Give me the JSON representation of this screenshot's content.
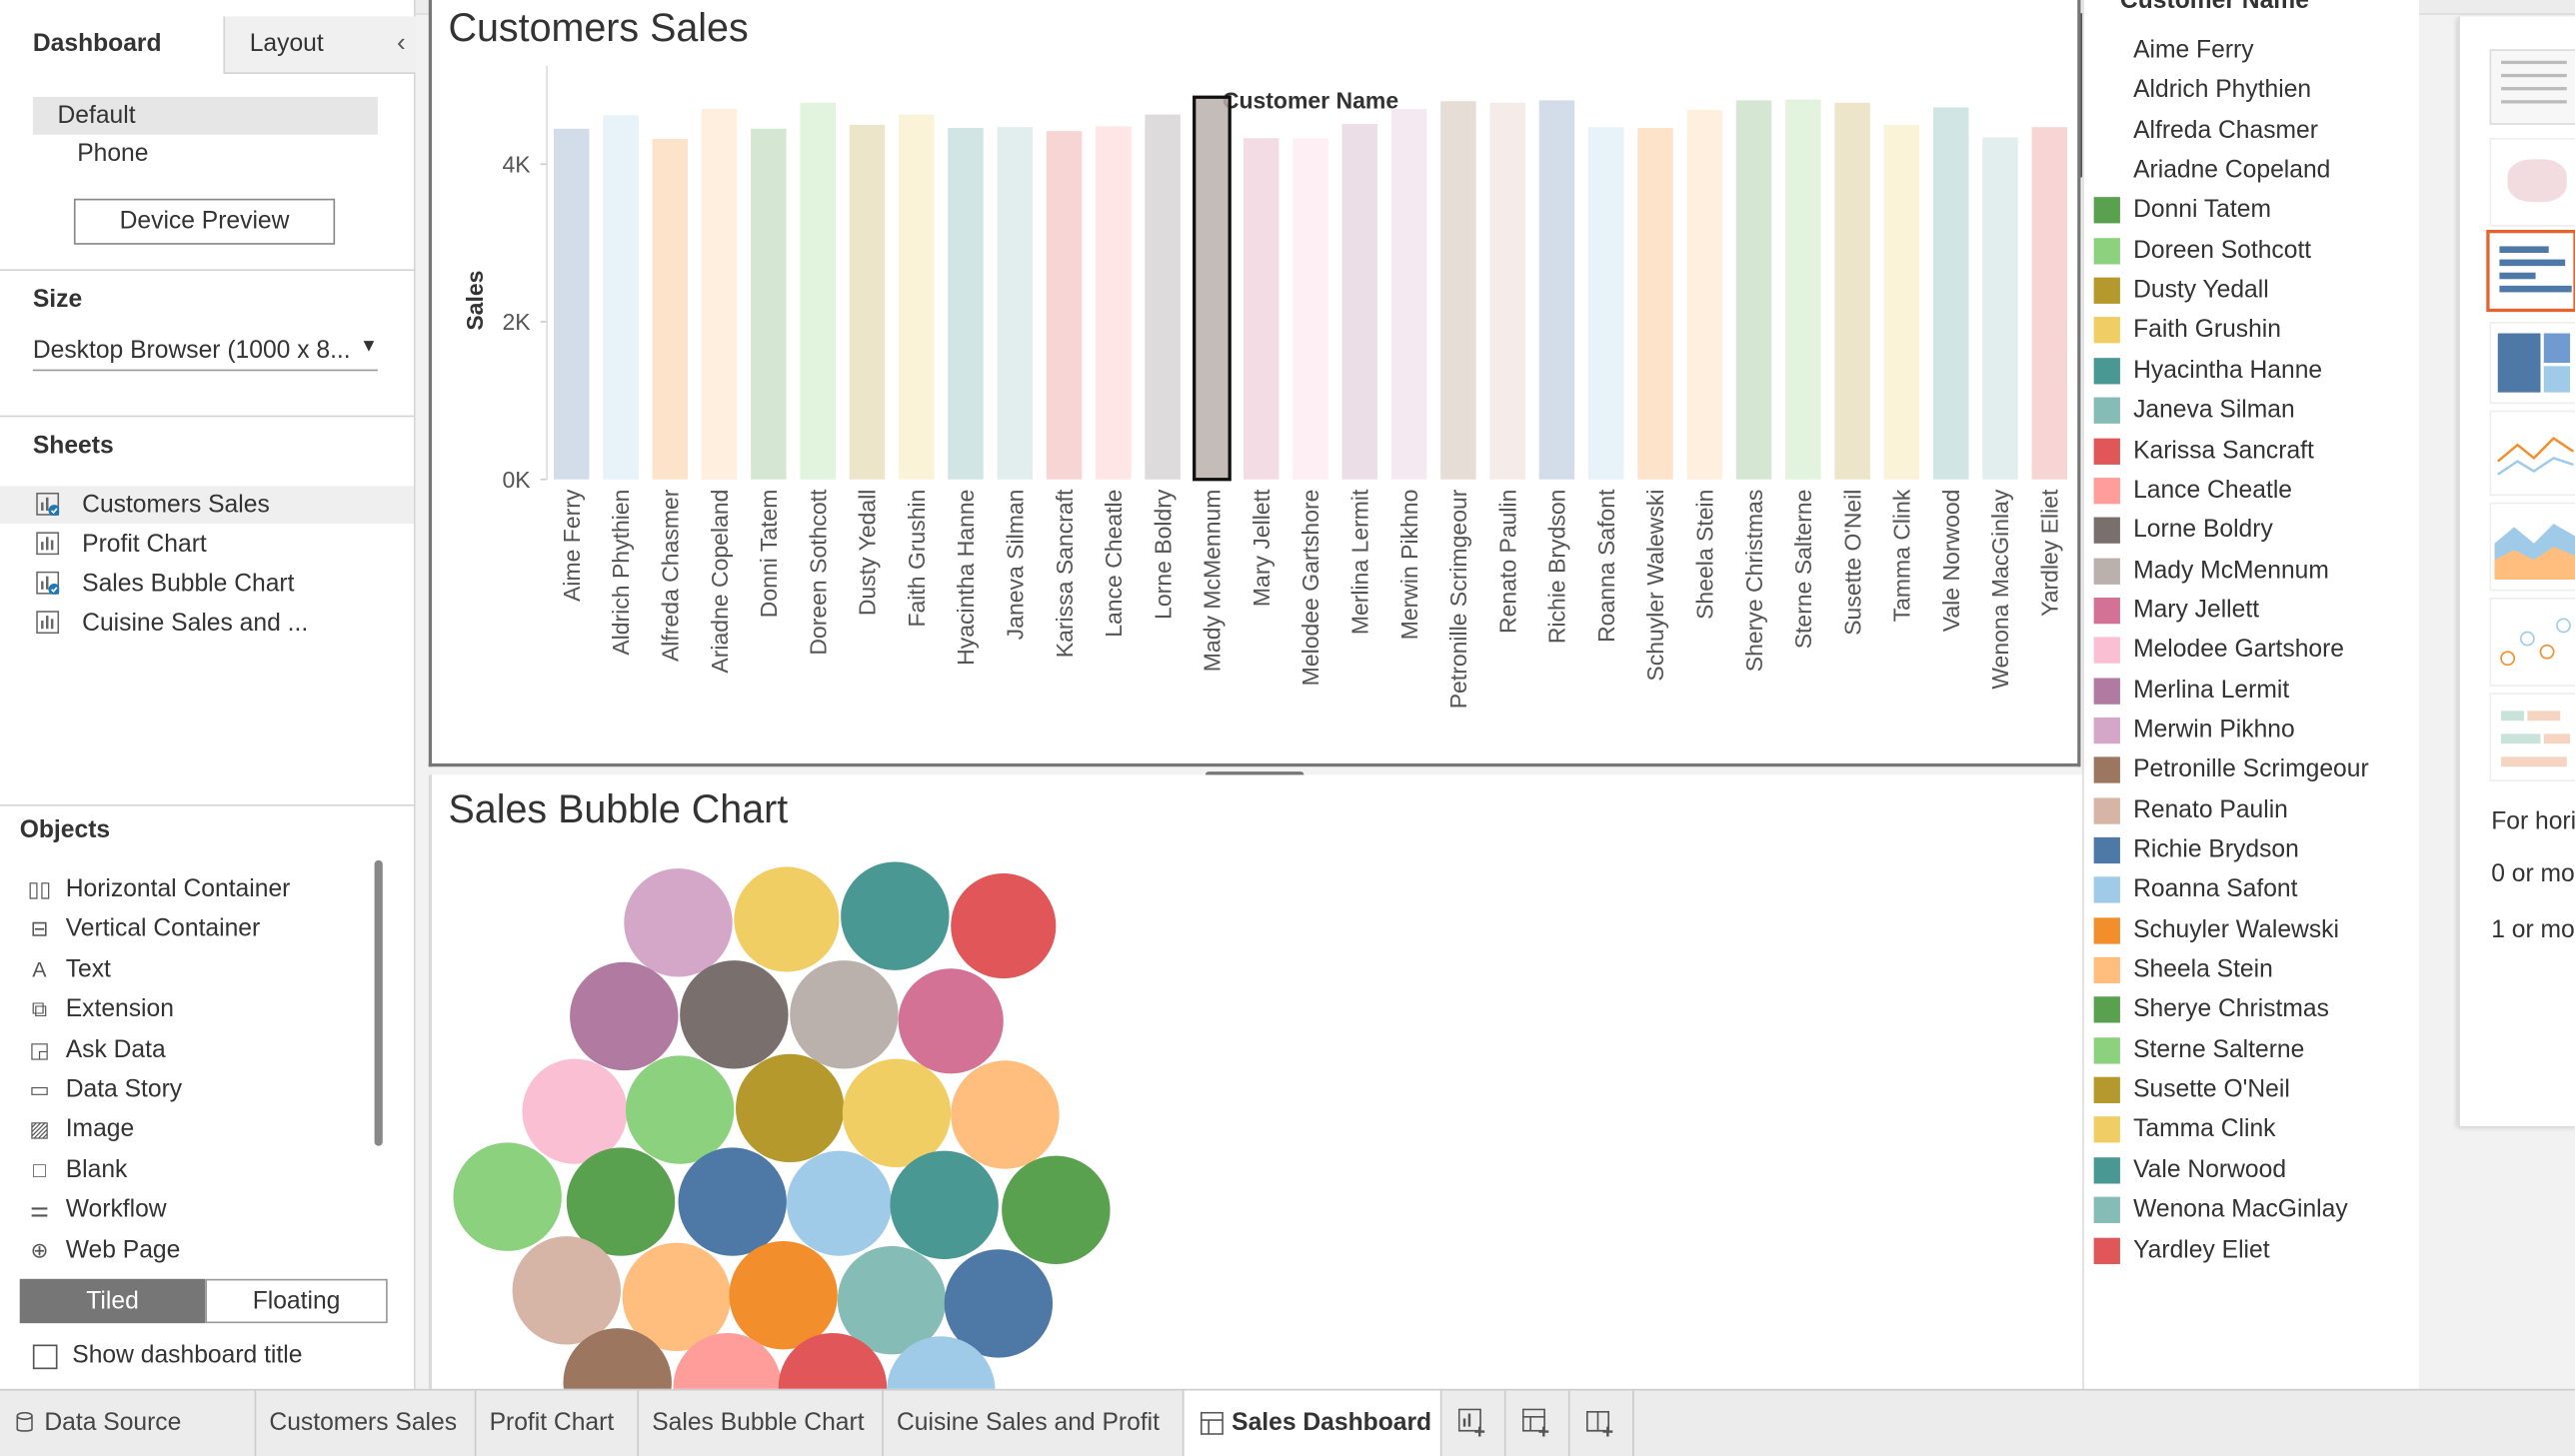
{
  "left_pane": {
    "tabs": [
      "Dashboard",
      "Layout"
    ],
    "device": {
      "options": [
        "Default",
        "Phone"
      ],
      "preview_button": "Device Preview"
    },
    "size": {
      "title": "Size",
      "value": "Desktop Browser (1000 x 8..."
    },
    "sheets": {
      "title": "Sheets",
      "items": [
        {
          "label": "Customers Sales",
          "used": true
        },
        {
          "label": "Profit Chart",
          "used": false
        },
        {
          "label": "Sales Bubble Chart",
          "used": true
        },
        {
          "label": "Cuisine Sales and ...",
          "used": false
        }
      ]
    },
    "objects": {
      "title": "Objects",
      "items": [
        {
          "label": "Horizontal Container",
          "icon": "horizontal-container-icon",
          "glyph": "▯▯"
        },
        {
          "label": "Vertical Container",
          "icon": "vertical-container-icon",
          "glyph": "⊟"
        },
        {
          "label": "Text",
          "icon": "text-icon",
          "glyph": "A"
        },
        {
          "label": "Extension",
          "icon": "extension-icon",
          "glyph": "⧉"
        },
        {
          "label": "Ask Data",
          "icon": "ask-data-icon",
          "glyph": "◲"
        },
        {
          "label": "Data Story",
          "icon": "data-story-icon",
          "glyph": "▭"
        },
        {
          "label": "Image",
          "icon": "image-icon",
          "glyph": "▨"
        },
        {
          "label": "Blank",
          "icon": "blank-icon",
          "glyph": "□"
        },
        {
          "label": "Workflow",
          "icon": "workflow-icon",
          "glyph": "⚌"
        },
        {
          "label": "Web Page",
          "icon": "web-page-icon",
          "glyph": "⊕"
        }
      ],
      "layout_toggle": [
        "Tiled",
        "Floating"
      ],
      "show_title_checkbox": "Show dashboard title"
    }
  },
  "dashboard": {
    "sheet1_title": "Customers Sales",
    "sheet2_title": "Sales Bubble Chart",
    "chart_data": {
      "type": "bar",
      "title": "Customer Name",
      "xlabel": "Customer Name",
      "ylabel": "Sales",
      "yticks": [
        "0K",
        "2K",
        "4K"
      ],
      "ylim": [
        0,
        5000
      ],
      "highlighted": "Mady McMennum",
      "categories": [
        "Aime Ferry",
        "Aldrich Phythien",
        "Alfreda Chasmer",
        "Ariadne Copeland",
        "Donni Tatem",
        "Doreen Sothcott",
        "Dusty Yedall",
        "Faith Grushin",
        "Hyacintha Hanne",
        "Janeva Silman",
        "Karissa Sancraft",
        "Lance Cheatle",
        "Lorne Boldry",
        "Mady McMennum",
        "Mary Jellett",
        "Melodee Gartshore",
        "Merlina Lermit",
        "Merwin Pikhno",
        "Petronille Scrimgeour",
        "Renato Paulin",
        "Richie Brydson",
        "Roanna Safont",
        "Schuyler Walewski",
        "Sheela Stein",
        "Sherye Christmas",
        "Sterne Salterne",
        "Susette O'Neil",
        "Tamma Clink",
        "Vale Norwood",
        "Wenona MacGinlay",
        "Yardley Eliet"
      ],
      "values": [
        4450,
        4620,
        4320,
        4700,
        4450,
        4780,
        4500,
        4630,
        4460,
        4470,
        4420,
        4480,
        4630,
        4850,
        4330,
        4330,
        4510,
        4700,
        4800,
        4780,
        4810,
        4470,
        4460,
        4690,
        4810,
        4820,
        4780,
        4500,
        4720,
        4340,
        4470
      ],
      "colors": [
        "#4e79a7",
        "#a0cbe8",
        "#f28e2b",
        "#ffbe7d",
        "#59a14f",
        "#8cd17d",
        "#b6992d",
        "#f1ce63",
        "#499894",
        "#86bcb6",
        "#e15759",
        "#ff9d9a",
        "#79706e",
        "#bab0ac",
        "#d37295",
        "#fabfd2",
        "#b07aa1",
        "#d4a6c8",
        "#9d7660",
        "#d7b5a6",
        "#4e79a7",
        "#a0cbe8",
        "#f28e2b",
        "#ffbe7d",
        "#59a14f",
        "#8cd17d",
        "#b6992d",
        "#f1ce63",
        "#499894",
        "#86bcb6",
        "#e15759"
      ]
    },
    "legend": {
      "title": "Customer Name",
      "items": [
        {
          "label": "Aime Ferry",
          "color": "#4e79a7"
        },
        {
          "label": "Aldrich Phythien",
          "color": "#a0cbe8"
        },
        {
          "label": "Alfreda Chasmer",
          "color": "#f28e2b"
        },
        {
          "label": "Ariadne Copeland",
          "color": "#ffbe7d"
        },
        {
          "label": "Donni Tatem",
          "color": "#59a14f"
        },
        {
          "label": "Doreen Sothcott",
          "color": "#8cd17d"
        },
        {
          "label": "Dusty Yedall",
          "color": "#b6992d"
        },
        {
          "label": "Faith Grushin",
          "color": "#f1ce63"
        },
        {
          "label": "Hyacintha Hanne",
          "color": "#499894"
        },
        {
          "label": "Janeva Silman",
          "color": "#86bcb6"
        },
        {
          "label": "Karissa Sancraft",
          "color": "#e15759"
        },
        {
          "label": "Lance Cheatle",
          "color": "#ff9d9a"
        },
        {
          "label": "Lorne Boldry",
          "color": "#79706e"
        },
        {
          "label": "Mady McMennum",
          "color": "#bab0ac"
        },
        {
          "label": "Mary Jellett",
          "color": "#d37295"
        },
        {
          "label": "Melodee Gartshore",
          "color": "#fabfd2"
        },
        {
          "label": "Merlina Lermit",
          "color": "#b07aa1"
        },
        {
          "label": "Merwin Pikhno",
          "color": "#d4a6c8"
        },
        {
          "label": "Petronille Scrimgeour",
          "color": "#9d7660"
        },
        {
          "label": "Renato Paulin",
          "color": "#d7b5a6"
        },
        {
          "label": "Richie Brydson",
          "color": "#4e79a7"
        },
        {
          "label": "Roanna Safont",
          "color": "#a0cbe8"
        },
        {
          "label": "Schuyler Walewski",
          "color": "#f28e2b"
        },
        {
          "label": "Sheela Stein",
          "color": "#ffbe7d"
        },
        {
          "label": "Sherye Christmas",
          "color": "#59a14f"
        },
        {
          "label": "Sterne Salterne",
          "color": "#8cd17d"
        },
        {
          "label": "Susette O'Neil",
          "color": "#b6992d"
        },
        {
          "label": "Tamma Clink",
          "color": "#f1ce63"
        },
        {
          "label": "Vale Norwood",
          "color": "#499894"
        },
        {
          "label": "Wenona MacGinlay",
          "color": "#86bcb6"
        },
        {
          "label": "Yardley Eliet",
          "color": "#e15759"
        }
      ]
    },
    "bubble_colors": [
      "#d4a6c8",
      "#f1ce63",
      "#499894",
      "#e15759",
      "#b07aa1",
      "#79706e",
      "#bab0ac",
      "#d37295",
      "#fabfd2",
      "#8cd17d",
      "#b6992d",
      "#f1ce63",
      "#ffbe7d",
      "#8cd17d",
      "#59a14f",
      "#4e79a7",
      "#a0cbe8",
      "#499894",
      "#59a14f",
      "#d7b5a6",
      "#ffbe7d",
      "#f28e2b",
      "#86bcb6",
      "#4e79a7",
      "#9d7660",
      "#ff9d9a",
      "#e15759",
      "#a0cbe8"
    ]
  },
  "right_panel": {
    "text1": "For hori",
    "text2": "0 or mo",
    "text3": "1 or mo"
  },
  "bottom_tabs": {
    "data_source": "Data Source",
    "tabs": [
      "Customers Sales",
      "Profit Chart",
      "Sales Bubble Chart",
      "Cuisine Sales and Profit"
    ],
    "active": "Sales Dashboard"
  }
}
